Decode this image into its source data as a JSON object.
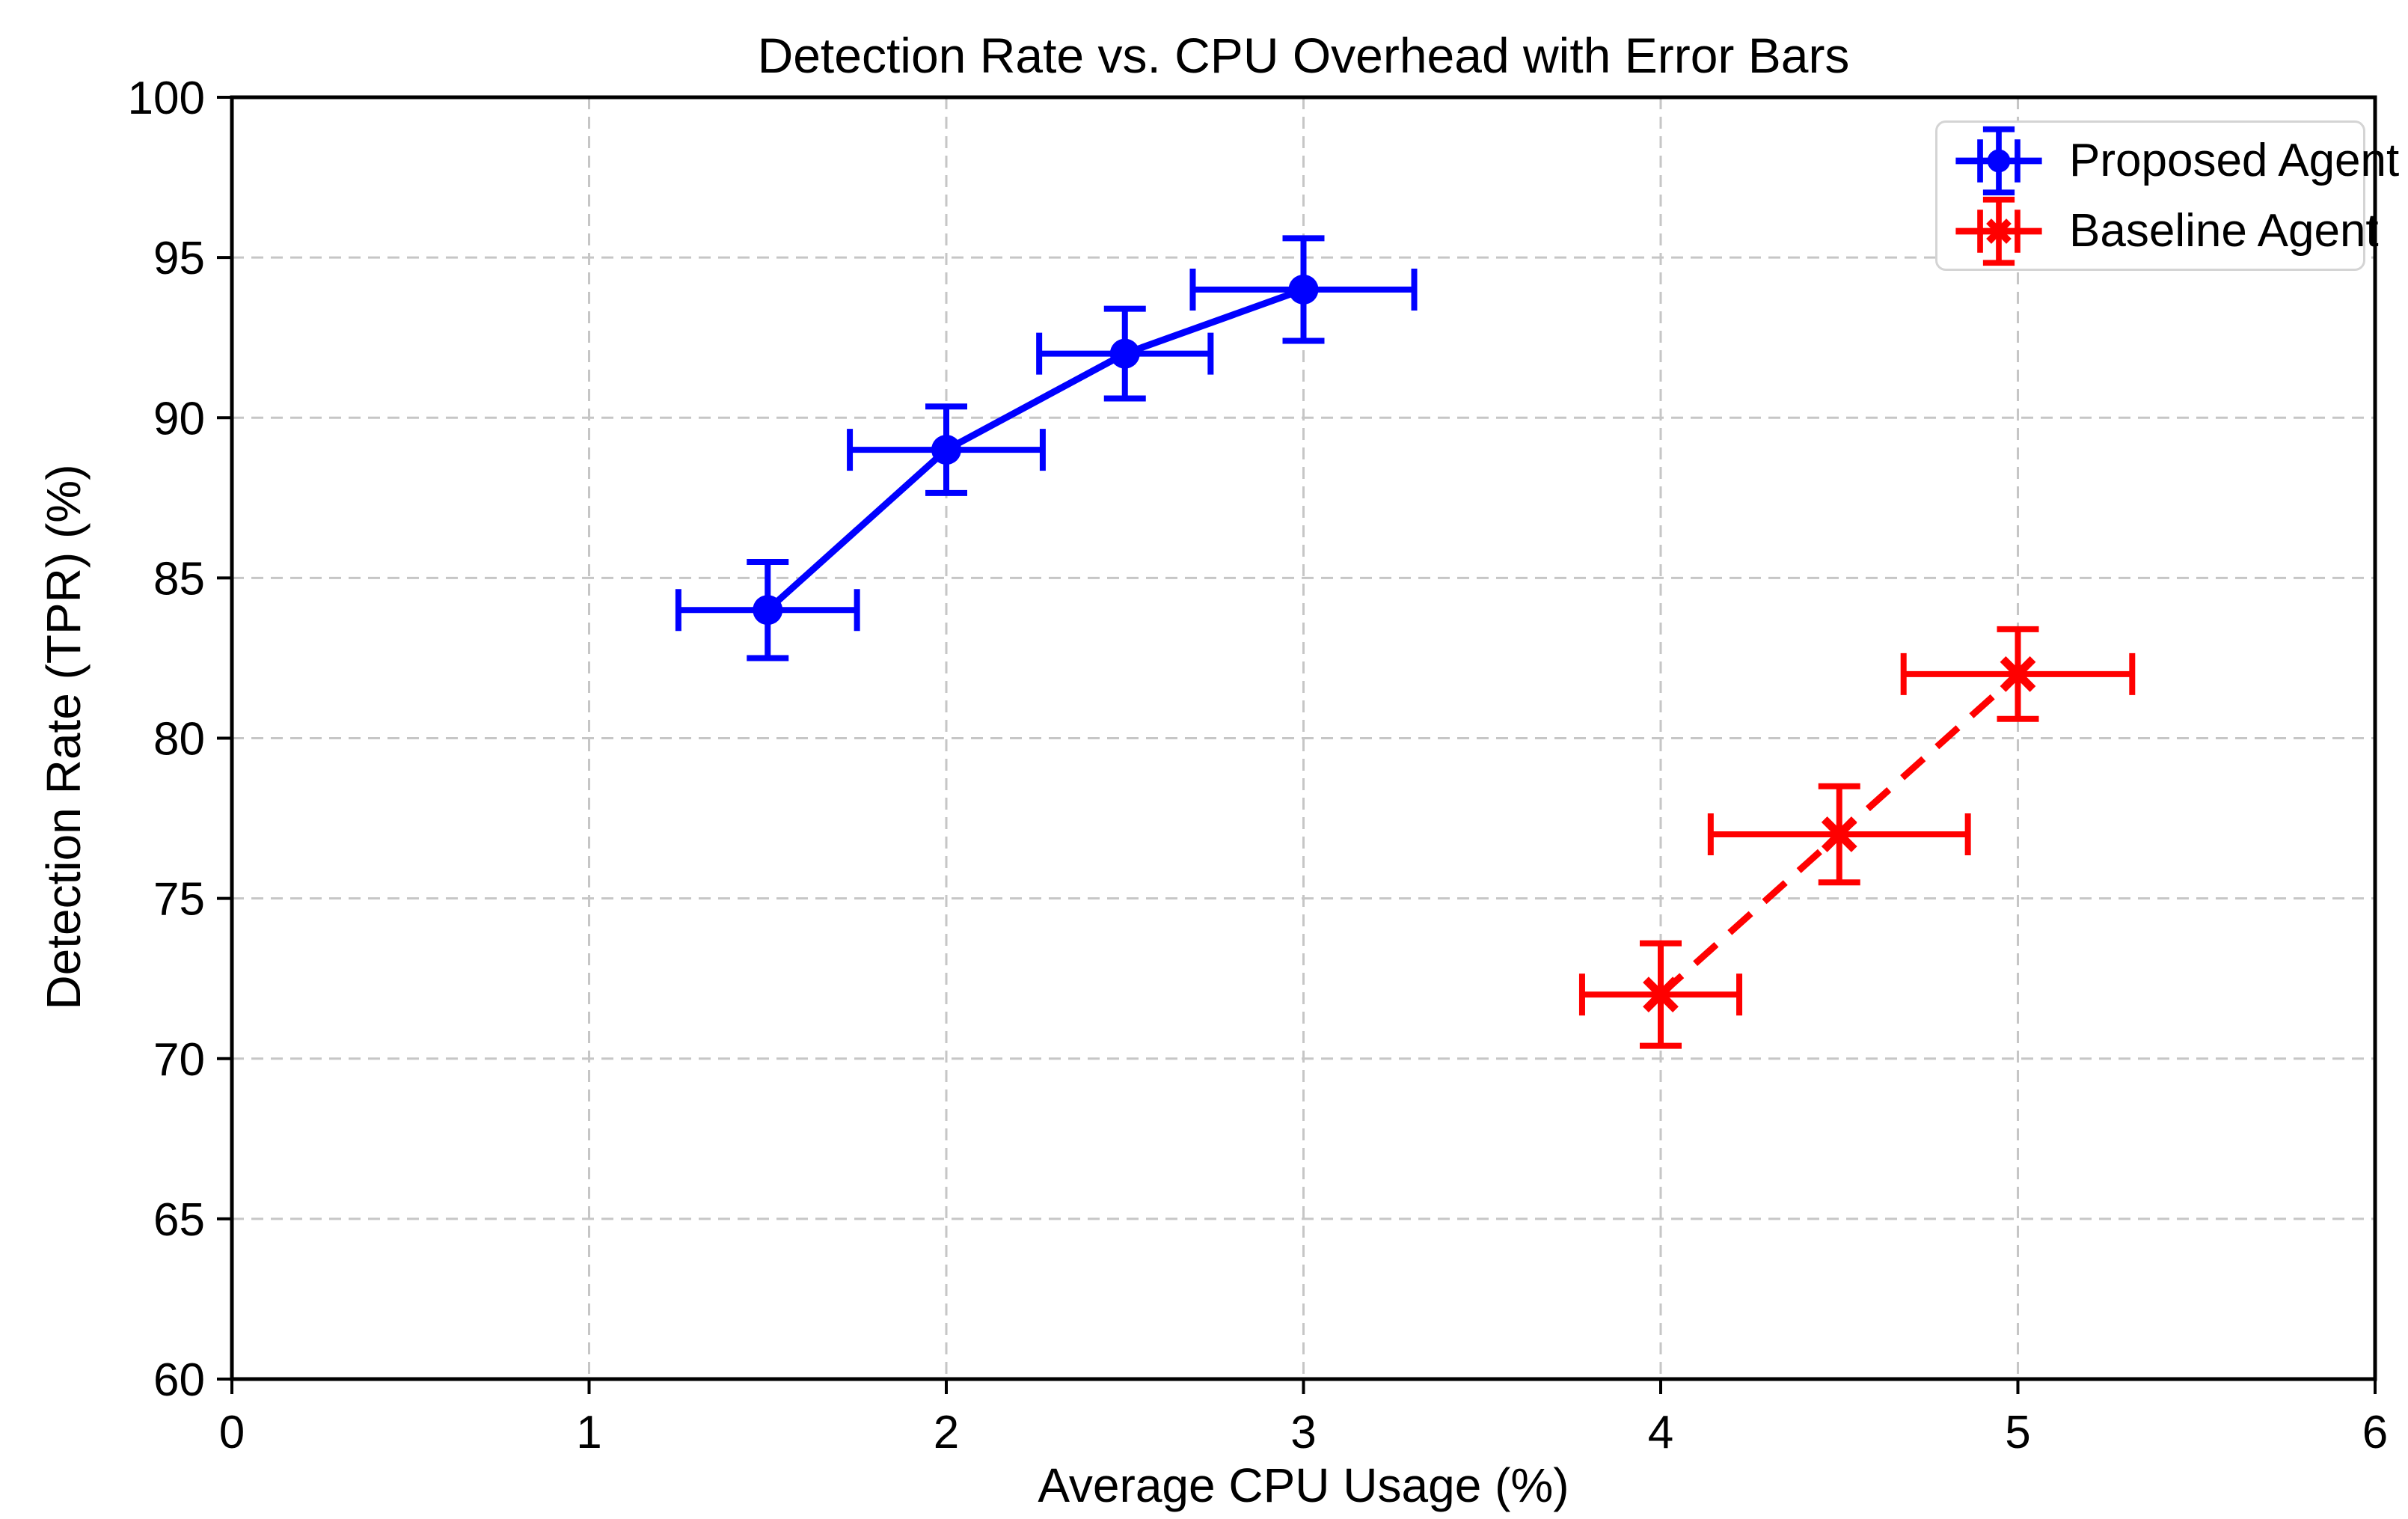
{
  "chart_data": {
    "type": "line",
    "title": "Detection Rate vs. CPU Overhead with Error Bars",
    "xlabel": "Average CPU Usage (%)",
    "ylabel": "Detection Rate (TPR) (%)",
    "xlim": [
      0,
      6
    ],
    "ylim": [
      60,
      100
    ],
    "x_ticks": [
      0,
      1,
      2,
      3,
      4,
      5,
      6
    ],
    "y_ticks": [
      60,
      65,
      70,
      75,
      80,
      85,
      90,
      95,
      100
    ],
    "grid": true,
    "grid_color": "#c6c6c6",
    "grid_style": "dashed",
    "axis_color": "#000000",
    "legend_position": "upper right",
    "series": [
      {
        "name": "Proposed Agent",
        "color": "#0000ff",
        "line_style": "solid",
        "marker": "circle",
        "x": [
          1.5,
          2.0,
          2.5,
          3.0
        ],
        "y": [
          84,
          89,
          92,
          94
        ],
        "xerr": [
          0.25,
          0.27,
          0.24,
          0.31
        ],
        "yerr": [
          1.5,
          1.35,
          1.4,
          1.6
        ]
      },
      {
        "name": "Baseline Agent",
        "color": "#ff0000",
        "line_style": "dashed",
        "marker": "x",
        "x": [
          4.0,
          4.5,
          5.0
        ],
        "y": [
          72,
          77,
          82
        ],
        "xerr": [
          0.22,
          0.36,
          0.32
        ],
        "yerr": [
          1.6,
          1.5,
          1.4
        ]
      }
    ]
  }
}
